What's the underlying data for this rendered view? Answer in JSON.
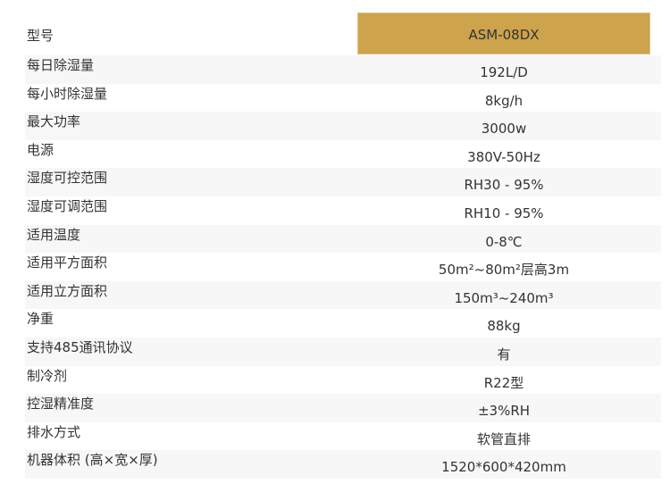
{
  "accent_color": "#cda34b",
  "specs": [
    {
      "label": "型号",
      "value": "ASM-08DX"
    },
    {
      "label": "每日除湿量",
      "value": "192L/D"
    },
    {
      "label": "每小时除湿量",
      "value": "8kg/h"
    },
    {
      "label": "最大功率",
      "value": "3000w"
    },
    {
      "label": "电源",
      "value": "380V-50Hz"
    },
    {
      "label": "湿度可控范围",
      "value": "RH30 - 95%"
    },
    {
      "label": "湿度可调范围",
      "value": "RH10 - 95%"
    },
    {
      "label": "适用温度",
      "value": "0-8℃"
    },
    {
      "label": "适用平方面积",
      "value": "50m²~80m²层高3m"
    },
    {
      "label": "适用立方面积",
      "value": "150m³~240m³"
    },
    {
      "label": "净重",
      "value": "88kg"
    },
    {
      "label": "支持485通讯协议",
      "value": "有"
    },
    {
      "label": "制冷剂",
      "value": "R22型"
    },
    {
      "label": "控湿精准度",
      "value": "±3%RH"
    },
    {
      "label": "排水方式",
      "value": "软管直排"
    },
    {
      "label": "机器体积 (高×宽×厚)",
      "value": "1520*600*420mm"
    }
  ]
}
